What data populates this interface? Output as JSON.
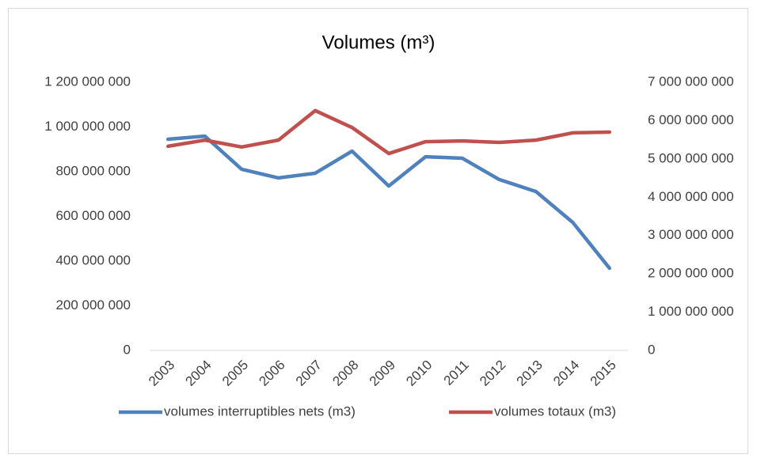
{
  "chart_data": {
    "type": "line",
    "title": "Volumes (m³)",
    "categories": [
      "2003",
      "2004",
      "2005",
      "2006",
      "2007",
      "2008",
      "2009",
      "2010",
      "2011",
      "2012",
      "2013",
      "2014",
      "2015"
    ],
    "series": [
      {
        "name": "volumes interruptibles nets (m3)",
        "color": "#4f81bd",
        "axis": "y",
        "values": [
          945000000,
          959000000,
          811000000,
          772000000,
          793000000,
          892000000,
          736000000,
          867000000,
          860000000,
          765000000,
          711000000,
          573000000,
          368000000
        ]
      },
      {
        "name": "volumes totaux (m3)",
        "color": "#c0504d",
        "axis": "y2",
        "values": [
          5330000000,
          5490000000,
          5310000000,
          5490000000,
          6260000000,
          5820000000,
          5140000000,
          5450000000,
          5470000000,
          5430000000,
          5490000000,
          5680000000,
          5700000000
        ]
      }
    ],
    "ylim": [
      0,
      1200000000
    ],
    "yticks": [
      0,
      {
        "value": 200000000,
        "label": "200 000 000"
      },
      {
        "value": 400000000,
        "label": "400 000 000"
      },
      {
        "value": 600000000,
        "label": "600 000 000"
      },
      {
        "value": 800000000,
        "label": "800 000 000"
      },
      {
        "value": 1000000000,
        "label": "1 000 000 000"
      },
      {
        "value": 1200000000,
        "label": "1 200 000 000"
      }
    ],
    "y2lim": [
      0,
      7000000000
    ],
    "y2ticks": [
      0,
      {
        "value": 1000000000,
        "label": "1 000 000 000"
      },
      {
        "value": 2000000000,
        "label": "2 000 000 000"
      },
      {
        "value": 3000000000,
        "label": "3 000 000 000"
      },
      {
        "value": 4000000000,
        "label": "4 000 000 000"
      },
      {
        "value": 5000000000,
        "label": "5 000 000 000"
      },
      {
        "value": 6000000000,
        "label": "6 000 000 000"
      },
      {
        "value": 7000000000,
        "label": "7 000 000 000"
      }
    ],
    "grid": false,
    "legend": "bottom"
  }
}
